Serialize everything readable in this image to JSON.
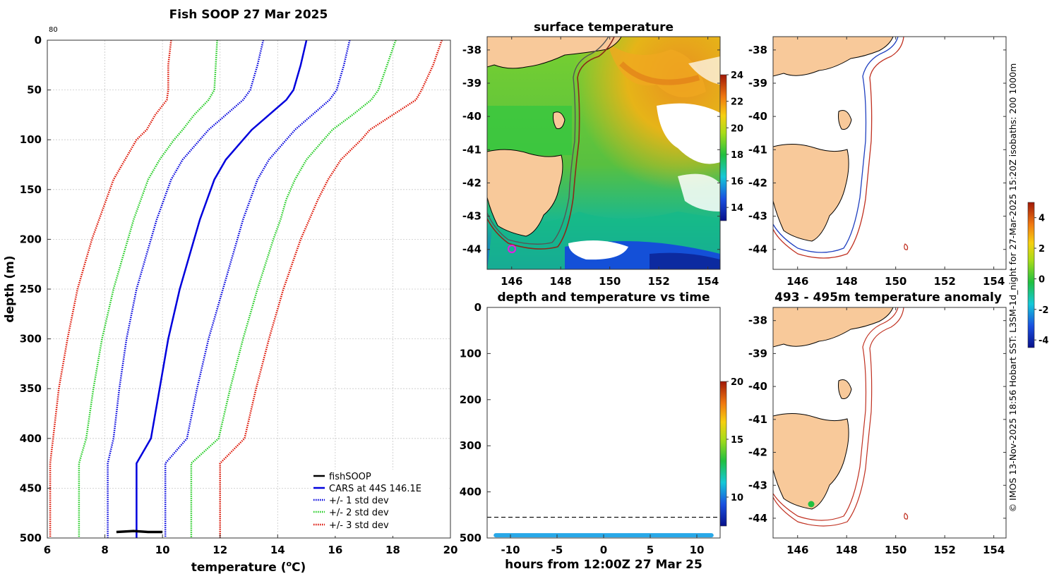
{
  "chart_data": [
    {
      "type": "line",
      "title": "Fish SOOP 27 Mar 2025",
      "corner_label": "80",
      "xlabel": "temperature (",
      "xlabel_sup": "o",
      "xlabel_tail": "C)",
      "ylabel": "depth (m)",
      "xlim": [
        6,
        20
      ],
      "ylim": [
        500,
        0
      ],
      "xticks": [
        "6",
        "8",
        "10",
        "12",
        "14",
        "16",
        "18",
        "20"
      ],
      "yticks": [
        "0",
        "50",
        "100",
        "150",
        "200",
        "250",
        "300",
        "350",
        "400",
        "450",
        "500"
      ],
      "legend": [
        "fishSOOP",
        "CARS at 44S 146.1E",
        "+/- 1 std dev",
        "+/- 2 std dev",
        "+/- 3 std dev"
      ],
      "colors": {
        "fishsoop": "#000000",
        "cars": "#0000dd",
        "std1": "#0000dd",
        "std2": "#22cc22",
        "std3": "#dd1100"
      },
      "depth": [
        0,
        25,
        50,
        60,
        75,
        90,
        100,
        120,
        140,
        160,
        180,
        200,
        250,
        300,
        350,
        400,
        425,
        450,
        500
      ],
      "series": [
        {
          "name": "CARS at 44S 146.1E",
          "values": [
            15.0,
            14.8,
            14.55,
            14.3,
            13.7,
            13.1,
            12.8,
            12.2,
            11.8,
            11.55,
            11.3,
            11.1,
            10.6,
            10.2,
            9.9,
            9.6,
            9.1,
            9.1,
            9.1
          ]
        },
        {
          "name": "+1 std dev",
          "values": [
            16.5,
            16.3,
            16.05,
            15.8,
            15.2,
            14.6,
            14.3,
            13.7,
            13.3,
            13.05,
            12.8,
            12.6,
            12.1,
            11.6,
            11.2,
            10.85,
            10.1,
            10.1,
            10.1
          ]
        },
        {
          "name": "-1 std dev",
          "values": [
            13.5,
            13.3,
            13.05,
            12.8,
            12.2,
            11.6,
            11.3,
            10.7,
            10.3,
            10.05,
            9.8,
            9.6,
            9.1,
            8.75,
            8.5,
            8.3,
            8.1,
            8.1,
            8.1
          ]
        },
        {
          "name": "+2 std dev",
          "values": [
            18.1,
            17.8,
            17.5,
            17.25,
            16.6,
            15.9,
            15.6,
            15.0,
            14.6,
            14.3,
            14.1,
            13.85,
            13.3,
            12.8,
            12.35,
            11.95,
            11.0,
            11.0,
            11.0
          ]
        },
        {
          "name": "-2 std dev",
          "values": [
            11.9,
            11.85,
            11.8,
            11.6,
            11.1,
            10.7,
            10.4,
            9.9,
            9.5,
            9.25,
            9.0,
            8.8,
            8.3,
            7.9,
            7.6,
            7.35,
            7.1,
            7.1,
            7.1
          ]
        },
        {
          "name": "+3 std dev",
          "values": [
            19.7,
            19.4,
            19.0,
            18.8,
            18.0,
            17.2,
            16.9,
            16.2,
            15.75,
            15.4,
            15.1,
            14.8,
            14.2,
            13.7,
            13.25,
            12.85,
            12.0,
            12.0,
            12.0
          ]
        },
        {
          "name": "-3 std dev",
          "values": [
            10.3,
            10.2,
            10.2,
            10.15,
            9.75,
            9.45,
            9.1,
            8.7,
            8.3,
            8.05,
            7.8,
            7.55,
            7.05,
            6.7,
            6.4,
            6.2,
            6.1,
            6.1,
            6.1
          ]
        },
        {
          "name": "fishSOOP",
          "x": [
            8.4,
            9.0,
            9.5,
            10.0
          ],
          "y": [
            494,
            493,
            494,
            494
          ]
        }
      ]
    },
    {
      "type": "heatmap",
      "title": "surface temperature",
      "xticks": [
        "146",
        "148",
        "150",
        "152",
        "154"
      ],
      "yticks": [
        "-38",
        "-39",
        "-40",
        "-41",
        "-42",
        "-43",
        "-44"
      ],
      "colorbar": {
        "label_values": [
          "24",
          "22",
          "20",
          "18",
          "16",
          "14"
        ],
        "range": [
          13,
          24
        ]
      }
    },
    {
      "type": "scatter",
      "title": "depth and temperature vs time",
      "xlabel": "hours from 12:00Z 27 Mar 25",
      "xticks": [
        "-10",
        "-5",
        "0",
        "5",
        "10"
      ],
      "yticks": [
        "0",
        "100",
        "200",
        "300",
        "400",
        "500"
      ],
      "xlim": [
        -12.5,
        12.5
      ],
      "ylim": [
        500,
        0
      ],
      "reference_depth": 455,
      "scatter_depth": 494,
      "colorbar": {
        "label_values": [
          "20",
          "15",
          "10"
        ],
        "range": [
          7.5,
          20
        ]
      }
    },
    {
      "type": "heatmap",
      "title": "",
      "xticks": [
        "146",
        "148",
        "150",
        "152",
        "154"
      ],
      "yticks": [
        "-38",
        "-39",
        "-40",
        "-41",
        "-42",
        "-43",
        "-44"
      ],
      "isobath_colors": {
        "d200": "#2040c0",
        "d1000": "#c03020"
      }
    },
    {
      "type": "heatmap",
      "title": "493 - 495m temperature anomaly",
      "xticks": [
        "146",
        "148",
        "150",
        "152",
        "154"
      ],
      "yticks": [
        "-38",
        "-39",
        "-40",
        "-41",
        "-42",
        "-43",
        "-44"
      ],
      "colorbar": {
        "label_values": [
          "4",
          "2",
          "0",
          "-2",
          "-4"
        ],
        "range": [
          -4.5,
          5
        ]
      }
    }
  ],
  "side_caption": "© IMOS 13-Nov-2025 18:56 Hobart SST: L3SM-1d_night for 27-Mar-2025 15:20Z isobaths: 200  1000m"
}
